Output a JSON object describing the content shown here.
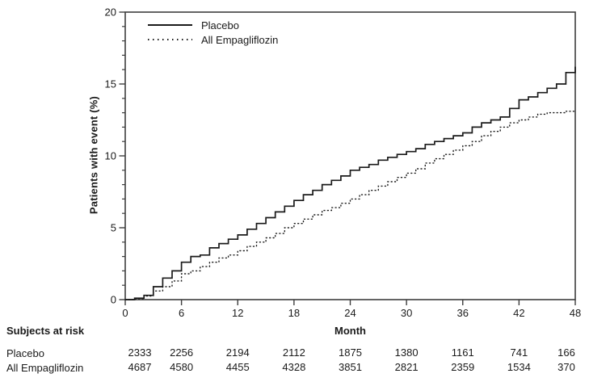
{
  "chart_data": {
    "type": "line",
    "title": "",
    "xlabel": "Month",
    "ylabel": "Patients with event (%)",
    "xlim": [
      0,
      48
    ],
    "ylim": [
      0,
      20
    ],
    "xticks": [
      0,
      6,
      12,
      18,
      24,
      30,
      36,
      42,
      48
    ],
    "yticks": [
      0,
      5,
      10,
      15,
      20
    ],
    "y_minor_step": 1,
    "grid": false,
    "legend_position": "top-left-inside",
    "line_color": "#1a1a1a",
    "axis_color": "#3d3d3d",
    "series": [
      {
        "name": "Placebo",
        "style": "solid",
        "step": true,
        "x": [
          0,
          1,
          2,
          3,
          4,
          5,
          6,
          7,
          8,
          9,
          10,
          11,
          12,
          13,
          14,
          15,
          16,
          17,
          18,
          19,
          20,
          21,
          22,
          23,
          24,
          25,
          26,
          27,
          28,
          29,
          30,
          31,
          32,
          33,
          34,
          35,
          36,
          37,
          38,
          39,
          40,
          41,
          42,
          43,
          44,
          45,
          46,
          47,
          48
        ],
        "y": [
          0,
          0.1,
          0.3,
          0.9,
          1.5,
          2.0,
          2.6,
          3.0,
          3.1,
          3.6,
          3.9,
          4.2,
          4.5,
          4.9,
          5.3,
          5.7,
          6.1,
          6.5,
          6.9,
          7.3,
          7.6,
          8.0,
          8.3,
          8.6,
          9.0,
          9.2,
          9.4,
          9.7,
          9.9,
          10.1,
          10.3,
          10.5,
          10.8,
          11.0,
          11.2,
          11.4,
          11.6,
          12.0,
          12.3,
          12.5,
          12.7,
          13.3,
          13.9,
          14.1,
          14.4,
          14.7,
          15.0,
          15.8,
          16.2
        ]
      },
      {
        "name": "All Empagliflozin",
        "style": "dotted",
        "step": true,
        "x": [
          0,
          1,
          2,
          3,
          4,
          5,
          6,
          7,
          8,
          9,
          10,
          11,
          12,
          13,
          14,
          15,
          16,
          17,
          18,
          19,
          20,
          21,
          22,
          23,
          24,
          25,
          26,
          27,
          28,
          29,
          30,
          31,
          32,
          33,
          34,
          35,
          36,
          37,
          38,
          39,
          40,
          41,
          42,
          43,
          44,
          45,
          46,
          47,
          48
        ],
        "y": [
          0,
          0.05,
          0.25,
          0.6,
          0.9,
          1.3,
          1.8,
          2.0,
          2.3,
          2.6,
          2.9,
          3.1,
          3.4,
          3.7,
          4.0,
          4.3,
          4.6,
          5.0,
          5.3,
          5.6,
          5.9,
          6.2,
          6.4,
          6.7,
          7.0,
          7.3,
          7.6,
          7.9,
          8.2,
          8.5,
          8.8,
          9.1,
          9.5,
          9.8,
          10.1,
          10.4,
          10.7,
          11.0,
          11.4,
          11.7,
          12.0,
          12.3,
          12.5,
          12.7,
          12.9,
          13.0,
          13.0,
          13.1,
          13.1
        ]
      }
    ]
  },
  "legend": {
    "entries": [
      "Placebo",
      "All Empagliflozin"
    ]
  },
  "risk_table": {
    "title": "Subjects at risk",
    "months": [
      0,
      6,
      12,
      18,
      24,
      30,
      36,
      42,
      48
    ],
    "rows": [
      {
        "label": "Placebo",
        "counts": [
          2333,
          2256,
          2194,
          2112,
          1875,
          1380,
          1161,
          741,
          166
        ]
      },
      {
        "label": "All Empagliflozin",
        "counts": [
          4687,
          4580,
          4455,
          4328,
          3851,
          2821,
          2359,
          1534,
          370
        ]
      }
    ]
  }
}
